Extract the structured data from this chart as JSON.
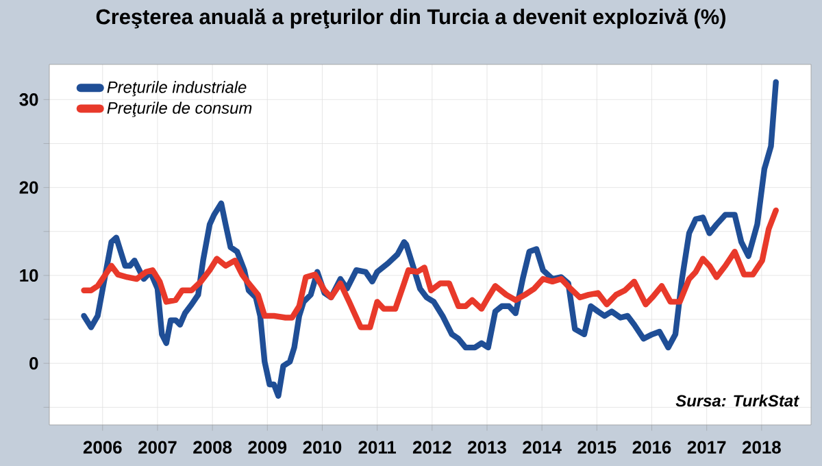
{
  "chart_data": {
    "type": "line",
    "title": "Creşterea anuală a preţurilor din Turcia a devenit explozivă (%)",
    "xlim": [
      2005.03,
      2018.9
    ],
    "xticks": [
      2006,
      2007,
      2008,
      2009,
      2010,
      2011,
      2012,
      2013,
      2014,
      2015,
      2016,
      2017,
      2018
    ],
    "ylim": [
      -7,
      34
    ],
    "yticks": [
      {
        "value": -5,
        "label": null
      },
      0,
      {
        "value": 5,
        "label": null
      },
      10,
      {
        "value": 15,
        "label": null
      },
      20,
      {
        "value": 25,
        "label": null
      },
      30
    ],
    "grid": true,
    "legend": "top left",
    "marker": "none",
    "line_style": "solid",
    "annotations": [
      "*Sursa: TurkStat*"
    ],
    "series": [
      {
        "name": "*Preţurile industriale*",
        "color": "#1f4e96",
        "x": [
          2005.66,
          2005.79,
          2005.91,
          2006.16,
          2006.25,
          2006.41,
          2006.5,
          2006.58,
          2006.75,
          2006.87,
          2007.0,
          2007.08,
          2007.16,
          2007.24,
          2007.33,
          2007.41,
          2007.5,
          2007.62,
          2007.74,
          2007.83,
          2007.95,
          2008.03,
          2008.16,
          2008.24,
          2008.33,
          2008.45,
          2008.58,
          2008.66,
          2008.79,
          2008.87,
          2008.95,
          2009.04,
          2009.12,
          2009.2,
          2009.29,
          2009.41,
          2009.49,
          2009.58,
          2009.66,
          2009.79,
          2009.91,
          2010.04,
          2010.16,
          2010.33,
          2010.45,
          2010.62,
          2010.79,
          2010.91,
          2011.0,
          2011.2,
          2011.37,
          2011.49,
          2011.53,
          2011.65,
          2011.78,
          2011.9,
          2012.03,
          2012.19,
          2012.36,
          2012.48,
          2012.61,
          2012.78,
          2012.9,
          2013.02,
          2013.15,
          2013.27,
          2013.4,
          2013.52,
          2013.65,
          2013.77,
          2013.9,
          2014.02,
          2014.19,
          2014.35,
          2014.48,
          2014.6,
          2014.77,
          2014.89,
          2015.02,
          2015.14,
          2015.27,
          2015.43,
          2015.56,
          2015.68,
          2015.85,
          2016.01,
          2016.14,
          2016.3,
          2016.43,
          2016.55,
          2016.68,
          2016.8,
          2016.93,
          2017.05,
          2017.18,
          2017.34,
          2017.51,
          2017.63,
          2017.76,
          2017.92,
          2018.05,
          2018.17,
          2018.26
        ],
        "values": [
          5.4,
          4.1,
          5.4,
          13.8,
          14.3,
          11.1,
          11.1,
          11.7,
          9.6,
          10.4,
          8.5,
          3.3,
          2.3,
          4.9,
          4.9,
          4.4,
          5.7,
          6.7,
          7.8,
          11.7,
          15.8,
          16.9,
          18.2,
          15.8,
          13.2,
          12.7,
          10.6,
          8.3,
          7.5,
          5.4,
          0.2,
          -2.4,
          -2.4,
          -3.7,
          -0.3,
          0.2,
          1.8,
          5.4,
          7.0,
          7.8,
          10.4,
          8.0,
          7.5,
          9.6,
          8.5,
          10.6,
          10.4,
          9.3,
          10.4,
          11.4,
          12.4,
          13.8,
          13.5,
          11.1,
          8.5,
          7.5,
          7.0,
          5.4,
          3.3,
          2.8,
          1.8,
          1.8,
          2.3,
          1.8,
          5.9,
          6.5,
          6.5,
          5.7,
          9.6,
          12.7,
          13.0,
          10.6,
          9.6,
          9.8,
          9.1,
          3.9,
          3.3,
          6.5,
          5.9,
          5.4,
          5.9,
          5.2,
          5.4,
          4.4,
          2.8,
          3.3,
          3.6,
          1.8,
          3.3,
          9.6,
          14.8,
          16.4,
          16.6,
          14.8,
          15.8,
          16.9,
          16.9,
          13.8,
          12.2,
          15.8,
          22.1,
          24.7,
          32.0
        ]
      },
      {
        "name": "*Preţurile de consum*",
        "color": "#e8392a",
        "x": [
          2005.66,
          2005.79,
          2005.91,
          2006.16,
          2006.28,
          2006.45,
          2006.62,
          2006.79,
          2006.91,
          2007.04,
          2007.16,
          2007.33,
          2007.45,
          2007.62,
          2007.79,
          2007.95,
          2008.08,
          2008.24,
          2008.41,
          2008.54,
          2008.66,
          2008.83,
          2008.95,
          2009.12,
          2009.33,
          2009.45,
          2009.58,
          2009.7,
          2009.87,
          2010.04,
          2010.16,
          2010.33,
          2010.49,
          2010.7,
          2010.87,
          2011.0,
          2011.12,
          2011.33,
          2011.49,
          2011.57,
          2011.73,
          2011.86,
          2011.98,
          2012.15,
          2012.31,
          2012.48,
          2012.61,
          2012.73,
          2012.9,
          2013.02,
          2013.15,
          2013.35,
          2013.52,
          2013.69,
          2013.86,
          2014.02,
          2014.19,
          2014.35,
          2014.52,
          2014.69,
          2014.85,
          2015.02,
          2015.18,
          2015.35,
          2015.51,
          2015.68,
          2015.89,
          2016.01,
          2016.18,
          2016.34,
          2016.51,
          2016.68,
          2016.8,
          2016.93,
          2017.05,
          2017.18,
          2017.34,
          2017.51,
          2017.68,
          2017.84,
          2018.01,
          2018.13,
          2018.26
        ],
        "values": [
          8.3,
          8.3,
          8.8,
          11.1,
          10.1,
          9.8,
          9.6,
          10.4,
          10.6,
          9.3,
          7.0,
          7.2,
          8.3,
          8.3,
          9.3,
          10.6,
          11.9,
          11.1,
          11.7,
          10.1,
          9.1,
          7.8,
          5.4,
          5.4,
          5.2,
          5.2,
          6.5,
          9.8,
          10.1,
          8.3,
          7.5,
          9.1,
          7.0,
          4.1,
          4.1,
          7.0,
          6.2,
          6.2,
          9.1,
          10.6,
          10.4,
          10.9,
          8.3,
          9.1,
          9.1,
          6.5,
          6.5,
          7.2,
          6.2,
          7.5,
          8.8,
          7.8,
          7.2,
          7.8,
          8.5,
          9.6,
          9.3,
          9.6,
          8.5,
          7.5,
          7.8,
          8.0,
          6.7,
          7.8,
          8.3,
          9.3,
          6.7,
          7.5,
          8.8,
          7.0,
          7.0,
          9.6,
          10.4,
          11.9,
          11.1,
          9.8,
          11.1,
          12.7,
          10.1,
          10.1,
          11.7,
          15.3,
          17.4
        ]
      }
    ]
  }
}
